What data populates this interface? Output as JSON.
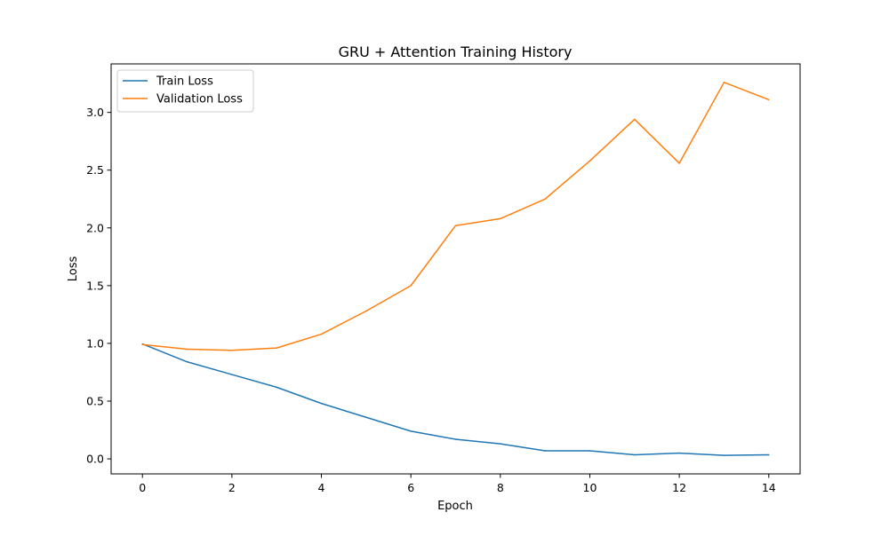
{
  "chart_data": {
    "type": "line",
    "title": "GRU + Attention Training History",
    "xlabel": "Epoch",
    "ylabel": "Loss",
    "xlim": [
      -0.7,
      14.7
    ],
    "ylim": [
      -0.13,
      3.42
    ],
    "xticks": [
      0,
      2,
      4,
      6,
      8,
      10,
      12,
      14
    ],
    "xtick_labels": [
      "0",
      "2",
      "4",
      "6",
      "8",
      "10",
      "12",
      "14"
    ],
    "yticks": [
      0.0,
      0.5,
      1.0,
      1.5,
      2.0,
      2.5,
      3.0
    ],
    "ytick_labels": [
      "0.0",
      "0.5",
      "1.0",
      "1.5",
      "2.0",
      "2.5",
      "3.0"
    ],
    "grid": false,
    "legend_position": "top-left",
    "x": [
      0,
      1,
      2,
      3,
      4,
      5,
      6,
      7,
      8,
      9,
      10,
      11,
      12,
      13,
      14
    ],
    "series": [
      {
        "name": "Train Loss",
        "color": "#1f77b4",
        "values": [
          0.995,
          0.84,
          0.73,
          0.62,
          0.48,
          0.36,
          0.24,
          0.17,
          0.13,
          0.07,
          0.07,
          0.035,
          0.05,
          0.03,
          0.035
        ]
      },
      {
        "name": "Validation Loss",
        "color": "#ff7f0e",
        "values": [
          0.99,
          0.95,
          0.94,
          0.96,
          1.08,
          1.28,
          1.5,
          2.02,
          2.08,
          2.25,
          2.58,
          2.94,
          2.56,
          3.26,
          3.11
        ]
      }
    ]
  }
}
